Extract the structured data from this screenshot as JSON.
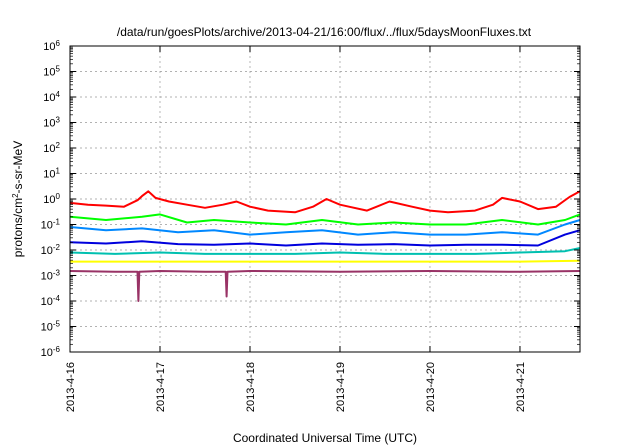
{
  "chart_data": {
    "type": "line",
    "title": "/data/run/goesPlots/archive/2013-04-21/16:00/flux/../flux/5daysMoonFluxes.txt",
    "xlabel": "Coordinated Universal Time (UTC)",
    "ylabel": "protons/cm²-s-sr-MeV",
    "ylabel_parts": {
      "pre": "protons/cm",
      "sup": "2",
      "post": "-s-sr-MeV"
    },
    "y_scale": "log",
    "ylim": [
      1e-06,
      1000000.0
    ],
    "xlim": [
      "2013-04-16",
      "2013-04-21 16:00"
    ],
    "x_ticks": [
      "2013-4-16",
      "2013-4-17",
      "2013-4-18",
      "2013-4-19",
      "2013-4-20",
      "2013-4-21"
    ],
    "x_tick_days": [
      0,
      1,
      2,
      3,
      4,
      5
    ],
    "x_end_day": 5.667,
    "y_ticks": [
      {
        "base": "10",
        "exp": "-6"
      },
      {
        "base": "10",
        "exp": "-5"
      },
      {
        "base": "10",
        "exp": "-4"
      },
      {
        "base": "10",
        "exp": "-3"
      },
      {
        "base": "10",
        "exp": "-2"
      },
      {
        "base": "10",
        "exp": "-1"
      },
      {
        "base": "10",
        "exp": "0"
      },
      {
        "base": "10",
        "exp": "1"
      },
      {
        "base": "10",
        "exp": "2"
      },
      {
        "base": "10",
        "exp": "3"
      },
      {
        "base": "10",
        "exp": "4"
      },
      {
        "base": "10",
        "exp": "5"
      },
      {
        "base": "10",
        "exp": "6"
      }
    ],
    "grid": true,
    "legend": "none",
    "series": [
      {
        "color": "#ff0000",
        "values": [
          [
            0.0,
            0.7
          ],
          [
            0.2,
            0.6
          ],
          [
            0.4,
            0.55
          ],
          [
            0.6,
            0.5
          ],
          [
            0.75,
            0.9
          ],
          [
            0.8,
            1.3
          ],
          [
            0.87,
            2.0
          ],
          [
            0.95,
            1.1
          ],
          [
            1.1,
            0.8
          ],
          [
            1.3,
            0.6
          ],
          [
            1.5,
            0.45
          ],
          [
            1.7,
            0.6
          ],
          [
            1.85,
            0.8
          ],
          [
            2.0,
            0.5
          ],
          [
            2.2,
            0.35
          ],
          [
            2.5,
            0.3
          ],
          [
            2.7,
            0.5
          ],
          [
            2.85,
            1.0
          ],
          [
            3.0,
            0.6
          ],
          [
            3.1,
            0.5
          ],
          [
            3.3,
            0.35
          ],
          [
            3.55,
            0.8
          ],
          [
            3.8,
            0.5
          ],
          [
            4.0,
            0.35
          ],
          [
            4.2,
            0.3
          ],
          [
            4.5,
            0.35
          ],
          [
            4.7,
            0.6
          ],
          [
            4.8,
            1.1
          ],
          [
            5.0,
            0.8
          ],
          [
            5.2,
            0.4
          ],
          [
            5.4,
            0.5
          ],
          [
            5.55,
            1.2
          ],
          [
            5.667,
            2.0
          ]
        ]
      },
      {
        "color": "#00ff00",
        "values": [
          [
            0.0,
            0.2
          ],
          [
            0.4,
            0.15
          ],
          [
            0.8,
            0.2
          ],
          [
            1.0,
            0.25
          ],
          [
            1.3,
            0.12
          ],
          [
            1.6,
            0.15
          ],
          [
            2.0,
            0.12
          ],
          [
            2.4,
            0.1
          ],
          [
            2.8,
            0.15
          ],
          [
            3.2,
            0.1
          ],
          [
            3.6,
            0.12
          ],
          [
            4.0,
            0.1
          ],
          [
            4.4,
            0.1
          ],
          [
            4.8,
            0.15
          ],
          [
            5.2,
            0.1
          ],
          [
            5.5,
            0.15
          ],
          [
            5.667,
            0.25
          ]
        ]
      },
      {
        "color": "#0088ff",
        "values": [
          [
            0.0,
            0.08
          ],
          [
            0.4,
            0.06
          ],
          [
            0.8,
            0.07
          ],
          [
            1.2,
            0.05
          ],
          [
            1.6,
            0.06
          ],
          [
            2.0,
            0.04
          ],
          [
            2.4,
            0.05
          ],
          [
            2.8,
            0.06
          ],
          [
            3.2,
            0.04
          ],
          [
            3.6,
            0.05
          ],
          [
            4.0,
            0.04
          ],
          [
            4.4,
            0.04
          ],
          [
            4.8,
            0.05
          ],
          [
            5.2,
            0.04
          ],
          [
            5.5,
            0.1
          ],
          [
            5.667,
            0.15
          ]
        ]
      },
      {
        "color": "#0000dd",
        "values": [
          [
            0.0,
            0.02
          ],
          [
            0.4,
            0.018
          ],
          [
            0.8,
            0.022
          ],
          [
            1.2,
            0.017
          ],
          [
            1.6,
            0.016
          ],
          [
            2.0,
            0.018
          ],
          [
            2.4,
            0.015
          ],
          [
            2.8,
            0.018
          ],
          [
            3.2,
            0.016
          ],
          [
            3.6,
            0.017
          ],
          [
            4.0,
            0.015
          ],
          [
            4.4,
            0.016
          ],
          [
            4.8,
            0.016
          ],
          [
            5.2,
            0.015
          ],
          [
            5.5,
            0.04
          ],
          [
            5.667,
            0.06
          ]
        ]
      },
      {
        "color": "#00c0b0",
        "values": [
          [
            0.0,
            0.008
          ],
          [
            0.5,
            0.007
          ],
          [
            1.0,
            0.008
          ],
          [
            1.5,
            0.007
          ],
          [
            2.0,
            0.007
          ],
          [
            2.5,
            0.007
          ],
          [
            3.0,
            0.008
          ],
          [
            3.5,
            0.007
          ],
          [
            4.0,
            0.007
          ],
          [
            4.5,
            0.007
          ],
          [
            5.0,
            0.008
          ],
          [
            5.5,
            0.009
          ],
          [
            5.667,
            0.012
          ]
        ]
      },
      {
        "color": "#ffff00",
        "values": [
          [
            0.0,
            0.0035
          ],
          [
            1.0,
            0.0035
          ],
          [
            2.0,
            0.0035
          ],
          [
            3.0,
            0.0035
          ],
          [
            4.0,
            0.0035
          ],
          [
            5.0,
            0.0035
          ],
          [
            5.667,
            0.0038
          ]
        ]
      },
      {
        "color": "#993366",
        "values": [
          [
            0.0,
            0.0015
          ],
          [
            0.5,
            0.0014
          ],
          [
            0.75,
            0.0014
          ],
          [
            0.76,
            0.0001
          ],
          [
            0.77,
            0.0014
          ],
          [
            1.0,
            0.0015
          ],
          [
            1.5,
            0.0014
          ],
          [
            1.73,
            0.0014
          ],
          [
            1.74,
            0.00015
          ],
          [
            1.75,
            0.0014
          ],
          [
            2.0,
            0.0015
          ],
          [
            3.0,
            0.0014
          ],
          [
            4.0,
            0.0015
          ],
          [
            5.0,
            0.0014
          ],
          [
            5.667,
            0.0015
          ]
        ]
      }
    ]
  }
}
